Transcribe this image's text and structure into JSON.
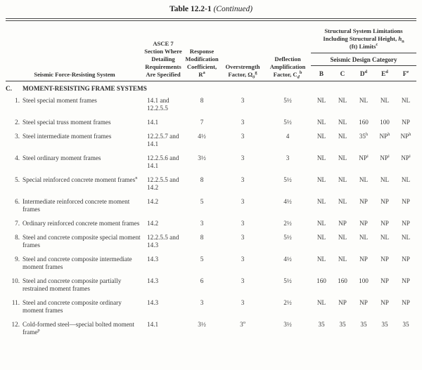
{
  "page": {
    "title_main": "Table 12.2-1",
    "title_paren": "(Continued)"
  },
  "header": {
    "system_col": "Seismic Force-Resisting System",
    "asce_col": "ASCE 7 Section Where Detailing Requirements Are Specified",
    "r_col": {
      "text": "Response Modification Coefficient, R",
      "sup": "a"
    },
    "omega_col": {
      "text": "Overstrength Factor, Ω",
      "sub": "0",
      "sup": "g"
    },
    "cd_col": {
      "text": "Deflection Amplification Factor, C",
      "sub": "d",
      "sup": "b"
    },
    "limits_group": {
      "pre": "Structural System Limitations Including Structural Height, ",
      "h": "h",
      "h_sub": "n",
      "mid": " (ft) Limits",
      "sup": "c"
    },
    "sdc_label": "Seismic Design Category",
    "sdc_cols": [
      "B",
      "C",
      "D^d",
      "E^d",
      "F^e"
    ]
  },
  "section": {
    "letter": "C.",
    "title": "MOMENT-RESISTING FRAME SYSTEMS"
  },
  "rows": [
    {
      "num": "1.",
      "name": "Steel special moment frames",
      "asce": "14.1 and 12.2.5.5",
      "r": "8",
      "omega": "3",
      "cd": "5½",
      "sdc": [
        "NL",
        "NL",
        "NL",
        "NL",
        "NL"
      ]
    },
    {
      "num": "2.",
      "name": "Steel special truss moment frames",
      "asce": "14.1",
      "r": "7",
      "omega": "3",
      "cd": "5½",
      "sdc": [
        "NL",
        "NL",
        "160",
        "100",
        "NP"
      ]
    },
    {
      "num": "3.",
      "name": "Steel intermediate moment frames",
      "asce": "12.2.5.7 and 14.1",
      "r": "4½",
      "omega": "3",
      "cd": "4",
      "sdc": [
        "NL",
        "NL",
        "35^h",
        "NP^h",
        "NP^h"
      ]
    },
    {
      "num": "4.",
      "name": "Steel ordinary moment frames",
      "asce": "12.2.5.6 and 14.1",
      "r": "3½",
      "omega": "3",
      "cd": "3",
      "sdc": [
        "NL",
        "NL",
        "NP^i",
        "NP^i",
        "NP^i"
      ]
    },
    {
      "num": "5.",
      "name": "Special reinforced concrete moment frames^n",
      "asce": "12.2.5.5 and 14.2",
      "r": "8",
      "omega": "3",
      "cd": "5½",
      "sdc": [
        "NL",
        "NL",
        "NL",
        "NL",
        "NL"
      ]
    },
    {
      "num": "6.",
      "name": "Intermediate reinforced concrete moment frames",
      "asce": "14.2",
      "r": "5",
      "omega": "3",
      "cd": "4½",
      "sdc": [
        "NL",
        "NL",
        "NP",
        "NP",
        "NP"
      ]
    },
    {
      "num": "7.",
      "name": "Ordinary reinforced concrete moment frames",
      "asce": "14.2",
      "r": "3",
      "omega": "3",
      "cd": "2½",
      "sdc": [
        "NL",
        "NP",
        "NP",
        "NP",
        "NP"
      ]
    },
    {
      "num": "8.",
      "name": "Steel and concrete composite special moment frames",
      "asce": "12.2.5.5 and 14.3",
      "r": "8",
      "omega": "3",
      "cd": "5½",
      "sdc": [
        "NL",
        "NL",
        "NL",
        "NL",
        "NL"
      ]
    },
    {
      "num": "9.",
      "name": "Steel and concrete composite intermediate moment frames",
      "asce": "14.3",
      "r": "5",
      "omega": "3",
      "cd": "4½",
      "sdc": [
        "NL",
        "NL",
        "NP",
        "NP",
        "NP"
      ]
    },
    {
      "num": "10.",
      "name": "Steel and concrete composite partially restrained moment frames",
      "asce": "14.3",
      "r": "6",
      "omega": "3",
      "cd": "5½",
      "sdc": [
        "160",
        "160",
        "100",
        "NP",
        "NP"
      ]
    },
    {
      "num": "11.",
      "name": "Steel and concrete composite ordinary moment frames",
      "asce": "14.3",
      "r": "3",
      "omega": "3",
      "cd": "2½",
      "sdc": [
        "NL",
        "NP",
        "NP",
        "NP",
        "NP"
      ]
    },
    {
      "num": "12.",
      "name": "Cold-formed steel—special bolted moment frame^p",
      "asce": "14.1",
      "r": "3½",
      "omega": "3^o",
      "cd": "3½",
      "sdc": [
        "35",
        "35",
        "35",
        "35",
        "35"
      ]
    }
  ]
}
